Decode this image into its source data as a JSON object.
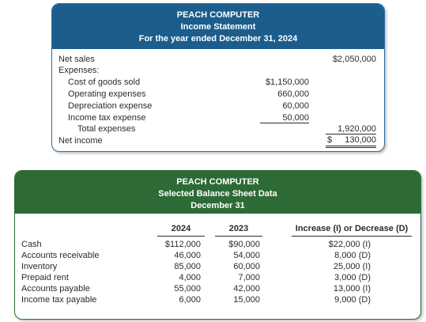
{
  "income_statement": {
    "company": "PEACH COMPUTER",
    "title": "Income Statement",
    "period": "For the year ended December 31, 2024",
    "net_sales_label": "Net sales",
    "net_sales_value": "$2,050,000",
    "expenses_label": "Expenses:",
    "expenses": [
      {
        "label": "Cost of goods sold",
        "value": "$1,150,000"
      },
      {
        "label": "Operating expenses",
        "value": "660,000"
      },
      {
        "label": "Depreciation expense",
        "value": "60,000"
      },
      {
        "label": "Income tax expense",
        "value": "50,000"
      }
    ],
    "total_expenses_label": "Total expenses",
    "total_expenses_value": "1,920,000",
    "net_income_label": "Net income",
    "net_income_dollar": "$",
    "net_income_value": "130,000"
  },
  "balance_sheet": {
    "company": "PEACH COMPUTER",
    "title": "Selected Balance Sheet Data",
    "date": "December 31",
    "col_2024": "2024",
    "col_2023": "2023",
    "col_change": "Increase (I) or Decrease (D)",
    "rows": [
      {
        "label": "Cash",
        "y2024": "$112,000",
        "y2023": "$90,000",
        "change": "$22,000 (I)"
      },
      {
        "label": "Accounts receivable",
        "y2024": "46,000",
        "y2023": "54,000",
        "change": "8,000 (D)"
      },
      {
        "label": "Inventory",
        "y2024": "85,000",
        "y2023": "60,000",
        "change": "25,000 (I)"
      },
      {
        "label": "Prepaid rent",
        "y2024": "4,000",
        "y2023": "7,000",
        "change": "3,000 (D)"
      },
      {
        "label": "Accounts payable",
        "y2024": "55,000",
        "y2023": "42,000",
        "change": "13,000 (I)"
      },
      {
        "label": "Income tax payable",
        "y2024": "6,000",
        "y2023": "15,000",
        "change": "9,000 (D)"
      }
    ]
  },
  "colors": {
    "income_header": "#1b5d8c",
    "balance_header": "#2d6a36"
  }
}
